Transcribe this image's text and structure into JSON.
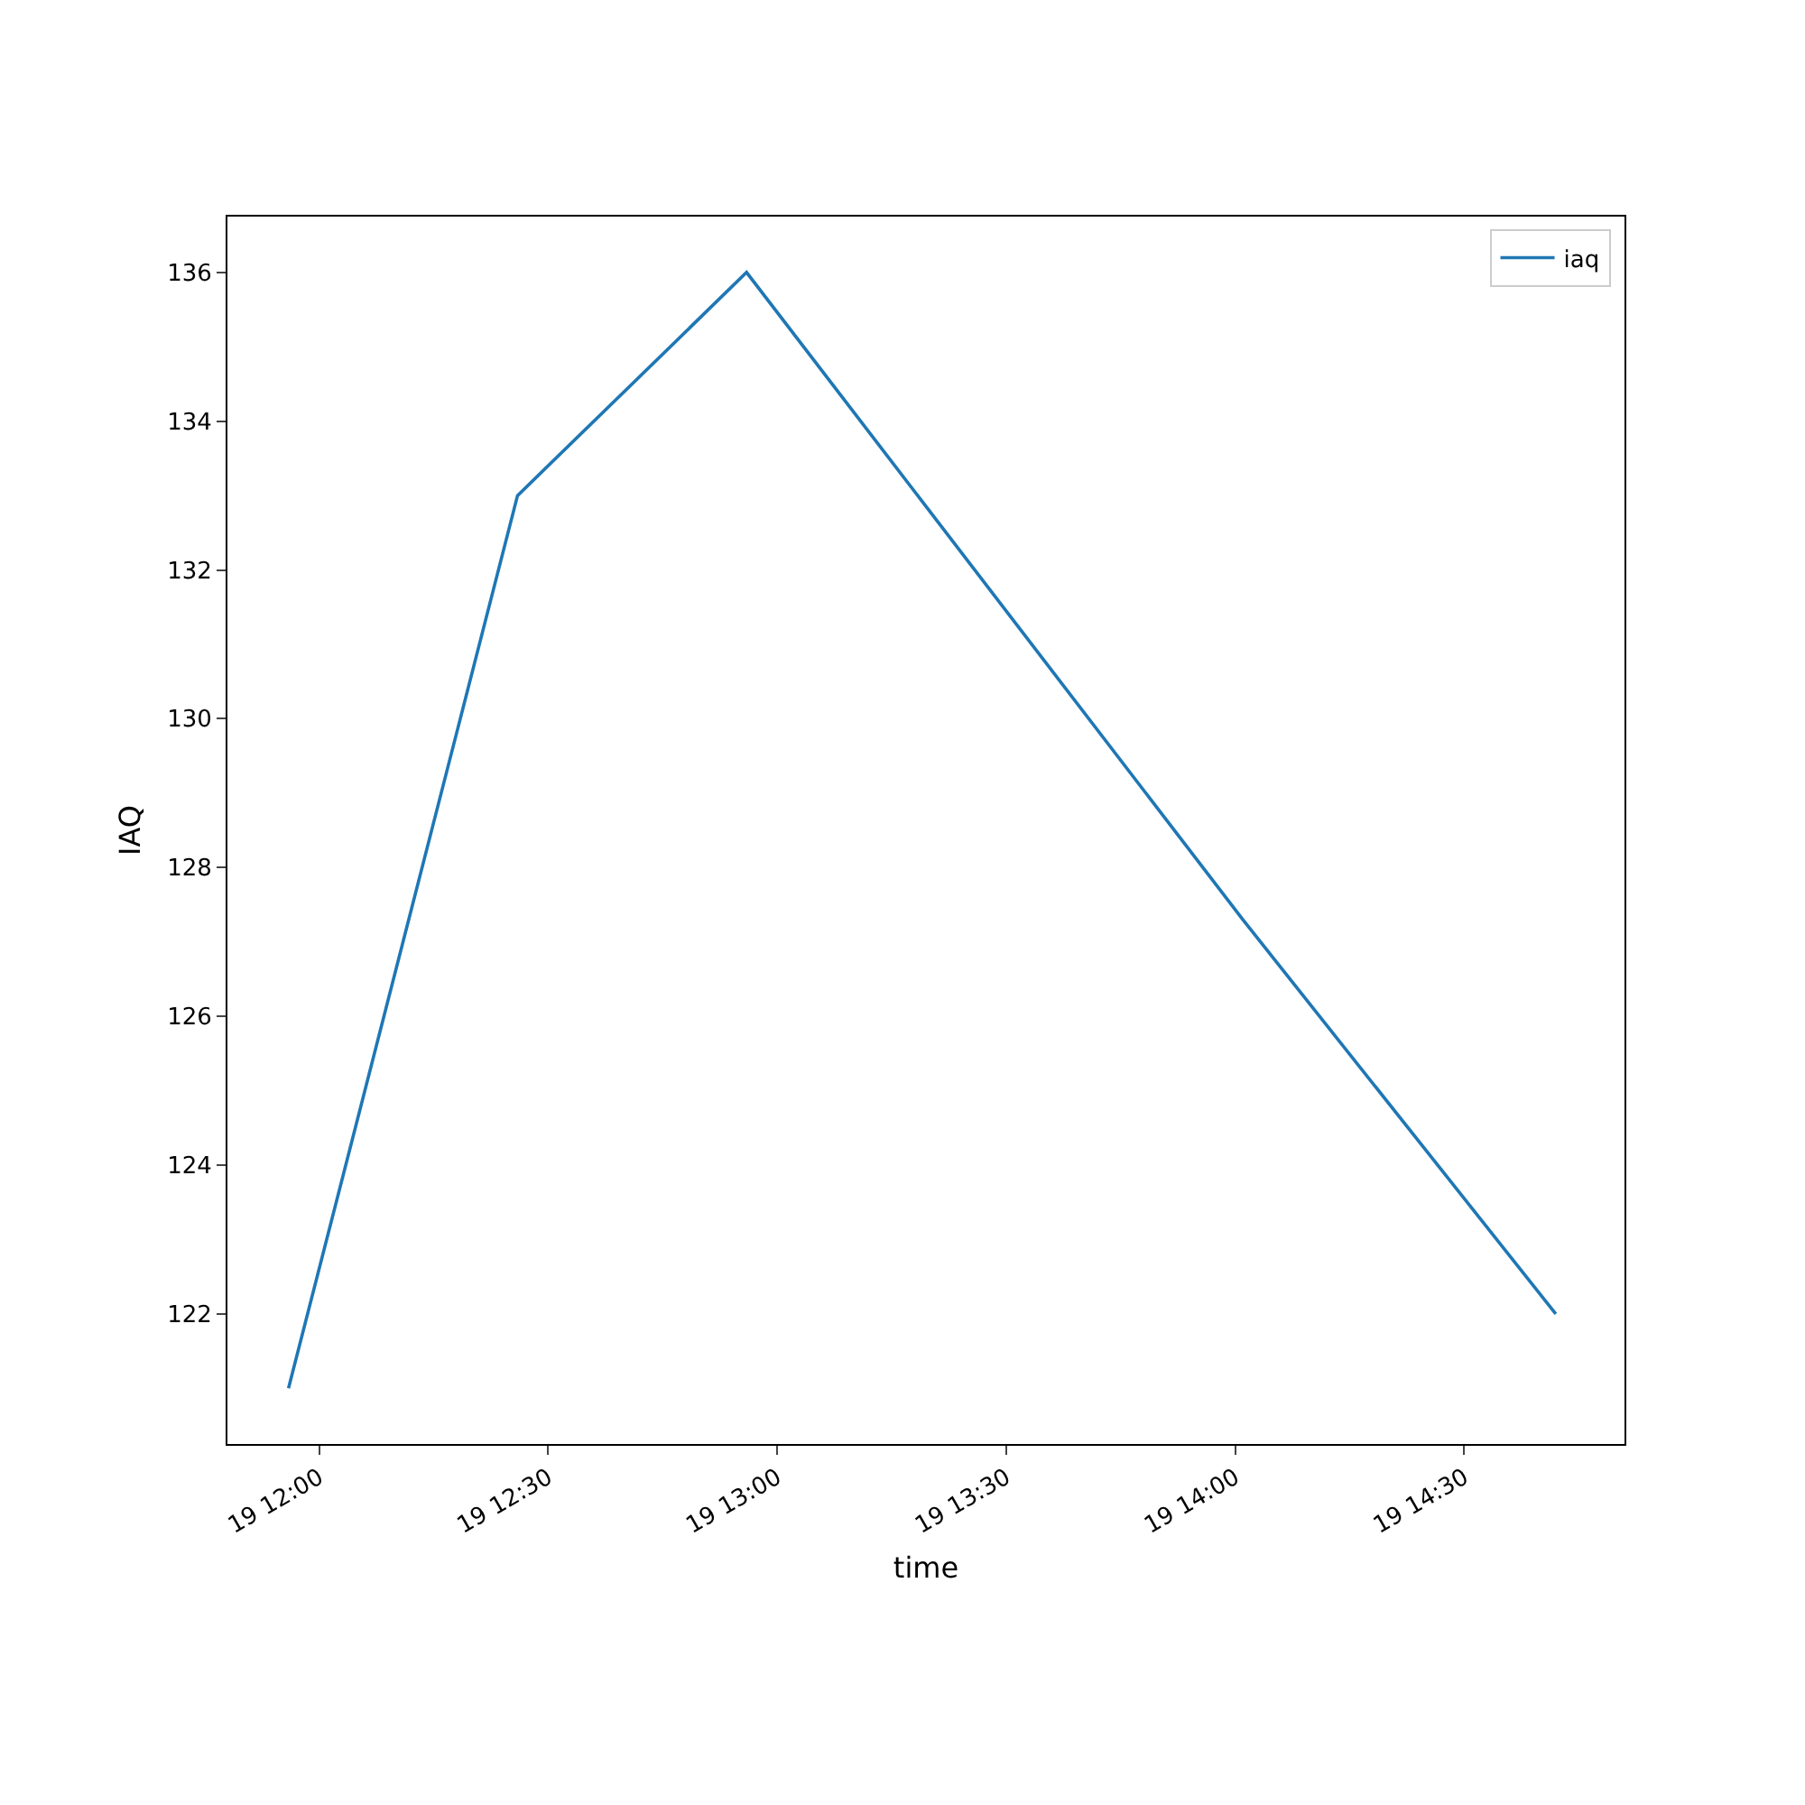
{
  "chart_data": {
    "type": "line",
    "xlabel": "time",
    "ylabel": "IAQ",
    "x": [
      "--01-19T11:56",
      "--01-19T12:26",
      "--01-19T12:56",
      "--01-19T14:01",
      "--01-19T14:42"
    ],
    "series": [
      {
        "name": "iaq",
        "color": "#1f77b4",
        "values": [
          121,
          133,
          136,
          127.3,
          122
        ]
      }
    ],
    "xlim": [
      "--01-19T11:48",
      "--01-19T14:51"
    ],
    "xticks": [
      {
        "value": "--01-19T12:00",
        "label": "19 12:00"
      },
      {
        "value": "--01-19T12:30",
        "label": "19 12:30"
      },
      {
        "value": "--01-19T13:00",
        "label": "19 13:00"
      },
      {
        "value": "--01-19T13:30",
        "label": "19 13:30"
      },
      {
        "value": "--01-19T14:00",
        "label": "19 14:00"
      },
      {
        "value": "--01-19T14:30",
        "label": "19 14:30"
      }
    ],
    "ylim": [
      120.25,
      136.75
    ],
    "yticks": [
      122,
      124,
      126,
      128,
      130,
      132,
      134,
      136
    ],
    "grid": false,
    "legend": "top right",
    "marker": "none",
    "line_style": "solid"
  }
}
